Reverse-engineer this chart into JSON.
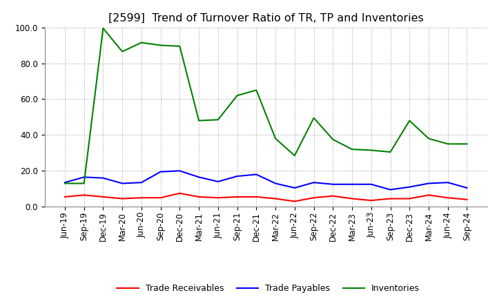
{
  "title": "[2599]  Trend of Turnover Ratio of TR, TP and Inventories",
  "labels": [
    "Jun-19",
    "Sep-19",
    "Dec-19",
    "Mar-20",
    "Jun-20",
    "Sep-20",
    "Dec-20",
    "Mar-21",
    "Jun-21",
    "Sep-21",
    "Dec-21",
    "Mar-22",
    "Jun-22",
    "Sep-22",
    "Dec-22",
    "Mar-23",
    "Jun-23",
    "Sep-23",
    "Dec-23",
    "Mar-24",
    "Jun-24",
    "Sep-24"
  ],
  "trade_receivables": [
    5.5,
    6.5,
    5.5,
    4.5,
    5.0,
    5.0,
    7.5,
    5.5,
    5.0,
    5.5,
    5.5,
    4.5,
    3.0,
    5.0,
    6.0,
    4.5,
    3.5,
    4.5,
    4.5,
    6.5,
    5.0,
    4.0
  ],
  "trade_payables": [
    13.5,
    16.5,
    16.0,
    13.0,
    13.5,
    19.5,
    20.0,
    16.5,
    14.0,
    17.0,
    18.0,
    13.0,
    10.5,
    13.5,
    12.5,
    12.5,
    12.5,
    9.5,
    11.0,
    13.0,
    13.5,
    10.5
  ],
  "inventories": [
    13.0,
    13.0,
    99.5,
    86.5,
    91.5,
    90.0,
    89.5,
    48.0,
    48.5,
    62.0,
    65.0,
    38.0,
    28.5,
    49.5,
    37.5,
    32.0,
    31.5,
    30.5,
    48.0,
    38.0,
    35.0,
    35.0
  ],
  "ylim": [
    0.0,
    100.0
  ],
  "yticks": [
    0.0,
    20.0,
    40.0,
    60.0,
    80.0,
    100.0
  ],
  "tr_color": "#ff0000",
  "tp_color": "#0000ff",
  "inv_color": "#008000",
  "background_color": "#ffffff",
  "grid_color": "#999999",
  "title_fontsize": 11.5,
  "tick_fontsize": 8.5,
  "legend_fontsize": 9,
  "legend_labels": [
    "Trade Receivables",
    "Trade Payables",
    "Inventories"
  ]
}
